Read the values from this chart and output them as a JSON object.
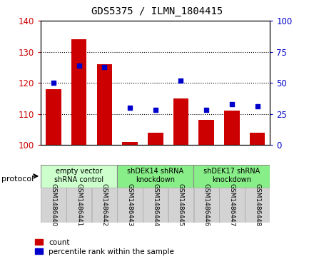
{
  "title": "GDS5375 / ILMN_1804415",
  "samples": [
    "GSM1486440",
    "GSM1486441",
    "GSM1486442",
    "GSM1486443",
    "GSM1486444",
    "GSM1486445",
    "GSM1486446",
    "GSM1486447",
    "GSM1486448"
  ],
  "counts": [
    118,
    134,
    126,
    101,
    104,
    115,
    108,
    111,
    104
  ],
  "percentile_ranks": [
    50,
    64,
    63,
    30,
    28,
    52,
    28,
    33,
    31
  ],
  "ylim_left": [
    100,
    140
  ],
  "ylim_right": [
    0,
    100
  ],
  "yticks_left": [
    100,
    110,
    120,
    130,
    140
  ],
  "yticks_right": [
    0,
    25,
    50,
    75,
    100
  ],
  "protocol_groups": [
    {
      "label": "empty vector\nshRNA control",
      "start": 0,
      "end": 3,
      "color": "#ccffcc"
    },
    {
      "label": "shDEK14 shRNA\nknockdown",
      "start": 3,
      "end": 6,
      "color": "#88ee88"
    },
    {
      "label": "shDEK17 shRNA\nknockdown",
      "start": 6,
      "end": 9,
      "color": "#88ee88"
    }
  ],
  "bar_color": "#cc0000",
  "dot_color": "#0000cc",
  "bar_width": 0.6,
  "tick_color_left": "#cc0000",
  "tick_color_right": "#0000cc",
  "plot_bg": "#ffffff",
  "label_box_color": "#d3d3d3",
  "legend_count_label": "count",
  "legend_percentile_label": "percentile rank within the sample",
  "protocol_label": "protocol"
}
